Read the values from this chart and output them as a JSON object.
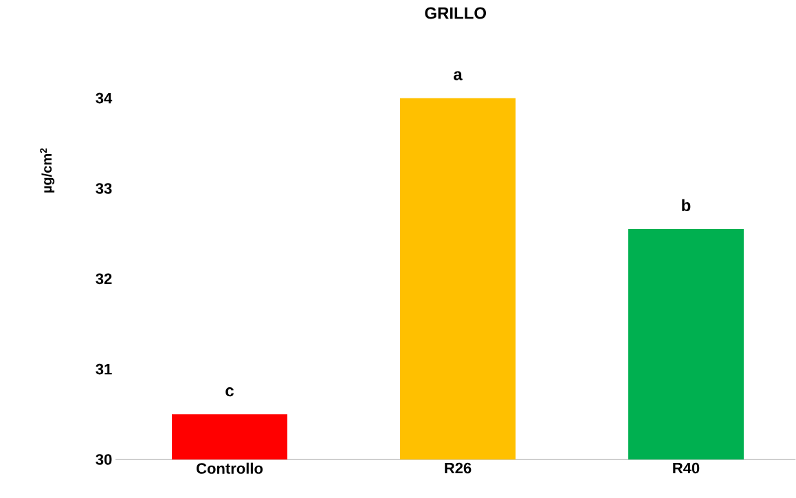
{
  "chart_data": {
    "type": "bar",
    "title": "GRILLO",
    "ylabel": "µg/cm$^{2}$",
    "categories": [
      "Controllo",
      "R26",
      "R40"
    ],
    "values": [
      30.5,
      34.0,
      32.55
    ],
    "colors": [
      "#ff0000",
      "#ffc000",
      "#00b050"
    ],
    "ylim": [
      30,
      34
    ],
    "yticks": [
      30,
      31,
      32,
      33,
      34
    ],
    "annotations": [
      {
        "text": "c",
        "x": "Controllo",
        "y": 30.5
      },
      {
        "text": "a",
        "x": "R26",
        "y": 34.0
      },
      {
        "text": "b",
        "x": "R40",
        "y": 32.55
      }
    ]
  }
}
